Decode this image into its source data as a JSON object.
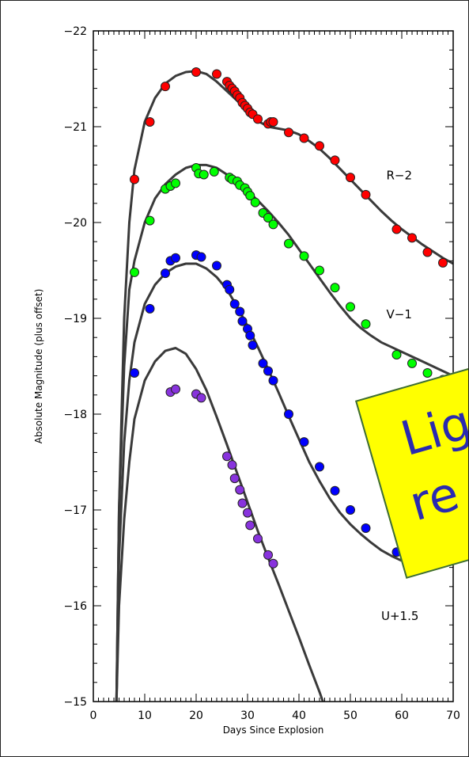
{
  "chart_data": {
    "type": "scatter",
    "title": "",
    "xlabel": "Days Since Explosion",
    "ylabel": "Absolute Magnitude (plus offset)",
    "xlim": [
      0,
      70
    ],
    "ylim": [
      -15,
      -22
    ],
    "y_inverted": true,
    "x_ticks": [
      "0",
      "10",
      "20",
      "30",
      "40",
      "50",
      "60",
      "70"
    ],
    "y_ticks": [
      "-15",
      "-16",
      "-17",
      "-18",
      "-19",
      "-20",
      "-21",
      "-22"
    ],
    "series": [
      {
        "name": "R−2",
        "color": "#ff0000",
        "x": [
          8.0,
          11.0,
          14.0,
          20.0,
          24.0,
          26.0,
          26.5,
          27.0,
          27.5,
          28.0,
          28.5,
          29.0,
          29.5,
          30.0,
          30.5,
          31.0,
          32.0,
          34.0,
          34.5,
          35.0,
          38.0,
          41.0,
          44.0,
          47.0,
          50.0,
          53.0,
          59.0,
          62.0,
          65.0,
          68.0
        ],
        "y": [
          -20.45,
          -21.05,
          -21.42,
          -21.57,
          -21.55,
          -21.47,
          -21.43,
          -21.4,
          -21.37,
          -21.33,
          -21.3,
          -21.25,
          -21.22,
          -21.19,
          -21.15,
          -21.13,
          -21.08,
          -21.03,
          -21.05,
          -21.05,
          -20.94,
          -20.88,
          -20.8,
          -20.65,
          -20.47,
          -20.29,
          -19.93,
          -19.84,
          -19.69,
          -19.58
        ]
      },
      {
        "name": "V−1",
        "color": "#00ff00",
        "x": [
          8.0,
          11.0,
          14.0,
          15.0,
          16.0,
          20.0,
          20.5,
          21.5,
          23.5,
          26.5,
          27.0,
          28.0,
          28.5,
          29.5,
          30.0,
          30.5,
          31.5,
          33.0,
          34.0,
          35.0,
          38.0,
          41.0,
          44.0,
          47.0,
          50.0,
          53.0,
          59.0,
          62.0,
          65.0,
          68.0
        ],
        "y": [
          -19.48,
          -20.02,
          -20.35,
          -20.38,
          -20.41,
          -20.57,
          -20.51,
          -20.5,
          -20.53,
          -20.47,
          -20.45,
          -20.43,
          -20.39,
          -20.36,
          -20.32,
          -20.28,
          -20.21,
          -20.1,
          -20.05,
          -19.98,
          -19.78,
          -19.65,
          -19.5,
          -19.32,
          -19.12,
          -18.94,
          -18.62,
          -18.53,
          -18.43,
          -18.36
        ]
      },
      {
        "name": "",
        "color": "#0000ff",
        "x": [
          8.0,
          11.0,
          14.0,
          15.0,
          16.0,
          20.0,
          21.0,
          24.0,
          26.0,
          26.5,
          27.5,
          28.5,
          29.0,
          30.0,
          30.5,
          31.0,
          33.0,
          34.0,
          35.0,
          38.0,
          41.0,
          44.0,
          47.0,
          50.0,
          53.0,
          59.0
        ],
        "y": [
          -18.43,
          -19.1,
          -19.47,
          -19.6,
          -19.63,
          -19.66,
          -19.64,
          -19.55,
          -19.35,
          -19.3,
          -19.15,
          -19.07,
          -18.97,
          -18.89,
          -18.82,
          -18.72,
          -18.53,
          -18.45,
          -18.35,
          -18.0,
          -17.71,
          -17.45,
          -17.2,
          -17.0,
          -16.81,
          -16.56
        ]
      },
      {
        "name": "U+1.5",
        "color": "#8833dd",
        "x": [
          15.0,
          16.0,
          20.0,
          21.0,
          26.0,
          27.0,
          27.5,
          28.5,
          29.0,
          30.0,
          30.5,
          32.0,
          34.0,
          35.0
        ],
        "y": [
          -18.23,
          -18.26,
          -18.21,
          -18.17,
          -17.56,
          -17.47,
          -17.33,
          -17.21,
          -17.07,
          -16.97,
          -16.84,
          -16.7,
          -16.53,
          -16.44
        ]
      }
    ],
    "model_curves": [
      {
        "series": "R−2",
        "points": [
          [
            4.5,
            -15.0
          ],
          [
            5.0,
            -17.0
          ],
          [
            6.0,
            -19.0
          ],
          [
            7.0,
            -20.0
          ],
          [
            8.0,
            -20.55
          ],
          [
            10.0,
            -21.05
          ],
          [
            12.0,
            -21.3
          ],
          [
            14.0,
            -21.45
          ],
          [
            16.0,
            -21.53
          ],
          [
            18.0,
            -21.57
          ],
          [
            20.0,
            -21.58
          ],
          [
            22.0,
            -21.55
          ],
          [
            24.0,
            -21.47
          ],
          [
            26.0,
            -21.37
          ],
          [
            28.0,
            -21.27
          ],
          [
            30.0,
            -21.16
          ],
          [
            32.0,
            -21.06
          ],
          [
            34.0,
            -21.0
          ],
          [
            36.0,
            -20.98
          ],
          [
            38.0,
            -20.96
          ],
          [
            40.0,
            -20.92
          ],
          [
            42.0,
            -20.85
          ],
          [
            44.0,
            -20.77
          ],
          [
            46.0,
            -20.67
          ],
          [
            48.0,
            -20.56
          ],
          [
            50.0,
            -20.45
          ],
          [
            52.0,
            -20.34
          ],
          [
            54.0,
            -20.23
          ],
          [
            56.0,
            -20.12
          ],
          [
            58.0,
            -20.02
          ],
          [
            60.0,
            -19.93
          ],
          [
            62.0,
            -19.85
          ],
          [
            64.0,
            -19.77
          ],
          [
            66.0,
            -19.7
          ],
          [
            68.0,
            -19.63
          ],
          [
            70.0,
            -19.57
          ]
        ]
      },
      {
        "series": "V−1",
        "points": [
          [
            4.5,
            -15.0
          ],
          [
            5.0,
            -17.0
          ],
          [
            6.0,
            -18.5
          ],
          [
            7.0,
            -19.3
          ],
          [
            8.0,
            -19.6
          ],
          [
            10.0,
            -20.0
          ],
          [
            12.0,
            -20.25
          ],
          [
            14.0,
            -20.4
          ],
          [
            16.0,
            -20.5
          ],
          [
            18.0,
            -20.57
          ],
          [
            20.0,
            -20.6
          ],
          [
            22.0,
            -20.6
          ],
          [
            24.0,
            -20.57
          ],
          [
            26.0,
            -20.5
          ],
          [
            28.0,
            -20.42
          ],
          [
            30.0,
            -20.33
          ],
          [
            32.0,
            -20.23
          ],
          [
            34.0,
            -20.12
          ],
          [
            36.0,
            -20.0
          ],
          [
            38.0,
            -19.87
          ],
          [
            40.0,
            -19.72
          ],
          [
            42.0,
            -19.57
          ],
          [
            44.0,
            -19.42
          ],
          [
            46.0,
            -19.27
          ],
          [
            48.0,
            -19.13
          ],
          [
            50.0,
            -19.0
          ],
          [
            52.0,
            -18.9
          ],
          [
            54.0,
            -18.82
          ],
          [
            56.0,
            -18.75
          ],
          [
            58.0,
            -18.7
          ],
          [
            60.0,
            -18.65
          ],
          [
            62.0,
            -18.6
          ],
          [
            64.0,
            -18.55
          ],
          [
            66.0,
            -18.5
          ],
          [
            68.0,
            -18.45
          ],
          [
            70.0,
            -18.4
          ]
        ]
      },
      {
        "series": "",
        "points": [
          [
            4.5,
            -15.0
          ],
          [
            5.0,
            -16.5
          ],
          [
            6.0,
            -17.7
          ],
          [
            7.0,
            -18.35
          ],
          [
            8.0,
            -18.75
          ],
          [
            10.0,
            -19.15
          ],
          [
            12.0,
            -19.35
          ],
          [
            14.0,
            -19.47
          ],
          [
            16.0,
            -19.54
          ],
          [
            18.0,
            -19.57
          ],
          [
            20.0,
            -19.57
          ],
          [
            22.0,
            -19.52
          ],
          [
            24.0,
            -19.43
          ],
          [
            26.0,
            -19.3
          ],
          [
            28.0,
            -19.12
          ],
          [
            30.0,
            -18.92
          ],
          [
            32.0,
            -18.7
          ],
          [
            34.0,
            -18.47
          ],
          [
            36.0,
            -18.23
          ],
          [
            38.0,
            -17.98
          ],
          [
            40.0,
            -17.74
          ],
          [
            42.0,
            -17.5
          ],
          [
            44.0,
            -17.3
          ],
          [
            46.0,
            -17.12
          ],
          [
            48.0,
            -16.97
          ],
          [
            50.0,
            -16.85
          ],
          [
            52.0,
            -16.75
          ],
          [
            54.0,
            -16.66
          ],
          [
            56.0,
            -16.58
          ],
          [
            58.0,
            -16.52
          ],
          [
            60.0,
            -16.47
          ],
          [
            62.0,
            -16.43
          ],
          [
            64.0,
            -16.4
          ]
        ]
      },
      {
        "series": "U+1.5",
        "points": [
          [
            4.5,
            -15.0
          ],
          [
            5.0,
            -16.0
          ],
          [
            6.0,
            -16.9
          ],
          [
            7.0,
            -17.5
          ],
          [
            8.0,
            -17.95
          ],
          [
            10.0,
            -18.35
          ],
          [
            12.0,
            -18.55
          ],
          [
            14.0,
            -18.66
          ],
          [
            16.0,
            -18.69
          ],
          [
            18.0,
            -18.63
          ],
          [
            20.0,
            -18.47
          ],
          [
            22.0,
            -18.25
          ],
          [
            24.0,
            -17.97
          ],
          [
            26.0,
            -17.68
          ],
          [
            28.0,
            -17.38
          ],
          [
            30.0,
            -17.08
          ],
          [
            32.0,
            -16.78
          ],
          [
            34.0,
            -16.5
          ],
          [
            36.0,
            -16.23
          ],
          [
            38.0,
            -15.95
          ],
          [
            40.0,
            -15.67
          ],
          [
            42.0,
            -15.38
          ],
          [
            44.0,
            -15.1
          ],
          [
            45.0,
            -14.95
          ]
        ]
      }
    ],
    "series_labels": [
      {
        "text": "R−2",
        "x": 57,
        "y": -20.45
      },
      {
        "text": "V−1",
        "x": 57,
        "y": -19.0
      },
      {
        "text": "U+1.5",
        "x": 56,
        "y": -15.85
      }
    ],
    "legend": "none",
    "grid": false
  },
  "callout": {
    "line1": "Lig",
    "line2": "re",
    "background": "#ffff00",
    "text_color": "#2a2ab0"
  }
}
